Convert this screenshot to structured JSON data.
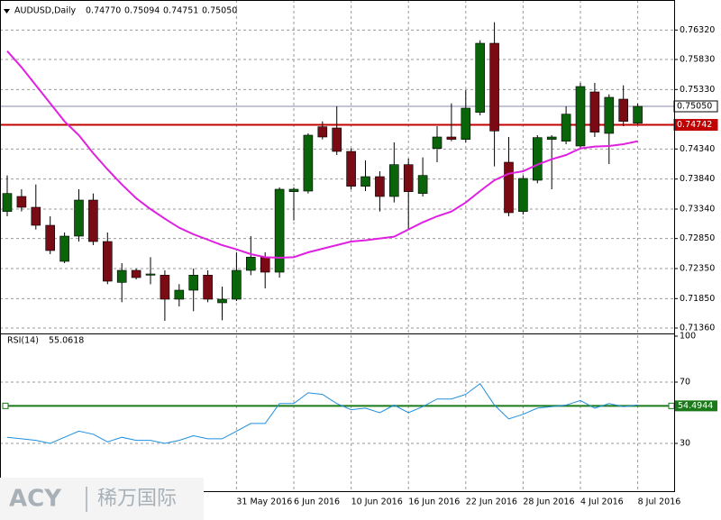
{
  "chart_data": [
    {
      "type": "candlestick",
      "title": "AUDUSD,Daily",
      "last_labels": [
        "0.74770",
        "0.75094",
        "0.74751",
        "0.75050"
      ],
      "categories": [
        null,
        null,
        null,
        null,
        null,
        null,
        null,
        null,
        null,
        null,
        null,
        null,
        null,
        null,
        null,
        null,
        "31 May 2016",
        null,
        null,
        null,
        "6 Jun 2016",
        null,
        null,
        null,
        "10 Jun 2016",
        null,
        null,
        null,
        "16 Jun 2016",
        null,
        null,
        null,
        "22 Jun 2016",
        null,
        null,
        null,
        "28 Jun 2016",
        null,
        null,
        null,
        "4 Jul 2016",
        null,
        null,
        null,
        "8 Jul 2016"
      ],
      "open": [
        0.733,
        0.7355,
        0.7337,
        0.7307,
        0.7247,
        0.7289,
        0.7349,
        0.728,
        0.7212,
        0.7232,
        0.7224,
        0.7224,
        0.7184,
        0.7199,
        0.7224,
        0.7178,
        0.7184,
        0.7232,
        0.7254,
        0.7229,
        0.7363,
        0.7364,
        0.7471,
        0.7469,
        0.743,
        0.7372,
        0.7388,
        0.7355,
        0.7408,
        0.736,
        0.7435,
        0.7454,
        0.745,
        0.7495,
        0.761,
        0.7412,
        0.733,
        0.7382,
        0.745,
        0.7447,
        0.7439,
        0.7529,
        0.746,
        0.7517,
        0.7477
      ],
      "high": [
        0.739,
        0.7367,
        0.7375,
        0.7322,
        0.7295,
        0.7367,
        0.736,
        0.7295,
        0.7244,
        0.7235,
        0.7254,
        0.7232,
        0.7209,
        0.7235,
        0.7232,
        0.7205,
        0.7262,
        0.7289,
        0.7262,
        0.737,
        0.737,
        0.746,
        0.748,
        0.7505,
        0.7435,
        0.7415,
        0.7397,
        0.7445,
        0.7418,
        0.742,
        0.7472,
        0.751,
        0.7532,
        0.7615,
        0.7645,
        0.7454,
        0.739,
        0.7457,
        0.7457,
        0.7505,
        0.7544,
        0.7544,
        0.7525,
        0.754,
        0.75094
      ],
      "low": [
        0.7322,
        0.733,
        0.73,
        0.7259,
        0.7244,
        0.728,
        0.7274,
        0.7209,
        0.7179,
        0.7217,
        0.7209,
        0.7148,
        0.7172,
        0.7164,
        0.7179,
        0.7149,
        0.7181,
        0.7224,
        0.7202,
        0.722,
        0.7315,
        0.736,
        0.745,
        0.7424,
        0.7367,
        0.7364,
        0.733,
        0.7345,
        0.73,
        0.7355,
        0.7412,
        0.7447,
        0.7445,
        0.749,
        0.7405,
        0.7322,
        0.7325,
        0.7377,
        0.7367,
        0.7442,
        0.7435,
        0.7454,
        0.7409,
        0.7472,
        0.74751
      ],
      "close": [
        0.736,
        0.7337,
        0.7307,
        0.7265,
        0.7289,
        0.7349,
        0.728,
        0.7214,
        0.7232,
        0.722,
        0.7226,
        0.7184,
        0.7199,
        0.7224,
        0.7184,
        0.7184,
        0.7232,
        0.7254,
        0.7229,
        0.7367,
        0.7367,
        0.7457,
        0.7454,
        0.743,
        0.7372,
        0.7388,
        0.7355,
        0.7408,
        0.7363,
        0.739,
        0.7454,
        0.745,
        0.7502,
        0.761,
        0.7464,
        0.7328,
        0.7385,
        0.7453,
        0.7454,
        0.7492,
        0.7538,
        0.7462,
        0.752,
        0.748,
        0.7505
      ],
      "up_color": "#0a640a",
      "down_color": "#7a0a14",
      "ma": {
        "color": "#e020e0",
        "values": [
          0.7597,
          0.757,
          0.754,
          0.751,
          0.748,
          0.7457,
          0.7427,
          0.74,
          0.7375,
          0.7352,
          0.7334,
          0.7318,
          0.7303,
          0.7292,
          0.7283,
          0.7274,
          0.7267,
          0.7259,
          0.7254,
          0.7253,
          0.7254,
          0.7262,
          0.7268,
          0.7274,
          0.728,
          0.7282,
          0.7285,
          0.7288,
          0.73,
          0.7312,
          0.7322,
          0.733,
          0.7345,
          0.7364,
          0.7382,
          0.7393,
          0.7397,
          0.7408,
          0.7417,
          0.7424,
          0.7435,
          0.7438,
          0.7439,
          0.7442,
          0.7447
        ]
      },
      "ylim": [
        0.7127,
        0.7682
      ],
      "yticks": [
        {
          "value": 0.7632,
          "label": "0.76320"
        },
        {
          "value": 0.7583,
          "label": "0.75830"
        },
        {
          "value": 0.7533,
          "label": "0.75330"
        },
        {
          "value": 0.7434,
          "label": "0.74340"
        },
        {
          "value": 0.7384,
          "label": "0.73840"
        },
        {
          "value": 0.7334,
          "label": "0.73340"
        },
        {
          "value": 0.7285,
          "label": "0.72850"
        },
        {
          "value": 0.7235,
          "label": "0.72350"
        },
        {
          "value": 0.7185,
          "label": "0.71850"
        },
        {
          "value": 0.7136,
          "label": "0.71360"
        }
      ],
      "price_lines": [
        {
          "value": 0.7505,
          "label": "0.75050",
          "color": "#8a8ab0"
        },
        {
          "value": 0.74742,
          "label": "0.74742",
          "color": "#c00000"
        }
      ],
      "grid": true
    },
    {
      "type": "line",
      "title": "RSI(14)",
      "color": "#1e8fe0",
      "values": [
        34,
        33,
        32,
        30,
        34,
        38,
        36,
        31,
        34,
        32,
        32,
        30,
        32,
        35,
        33,
        33,
        38,
        43,
        43,
        56,
        56,
        63,
        62,
        56,
        52,
        53,
        50,
        55,
        50,
        54,
        59,
        59,
        62,
        69,
        55,
        46,
        49,
        53,
        54,
        55,
        58,
        53,
        56,
        54,
        55.0618
      ],
      "ylim": [
        0,
        100
      ],
      "yticks": [
        100,
        70,
        30
      ],
      "level": 54.4944,
      "level_color": "#1a7a1a",
      "grid": true
    }
  ],
  "watermark": {
    "brand": "ACY",
    "name": "稀万国际"
  }
}
